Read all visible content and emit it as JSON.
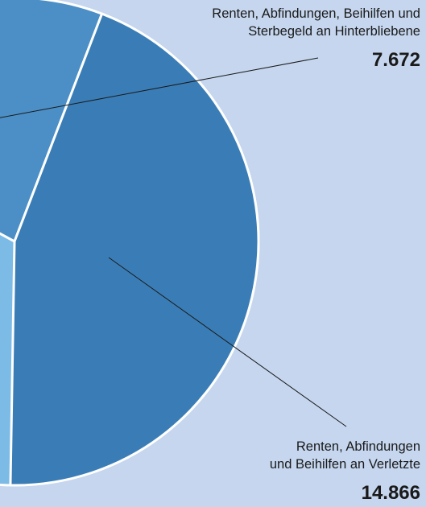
{
  "chart_data": {
    "type": "pie",
    "categories": [
      "Renten, Abfindungen, Beihilfen und\nSterbegeld an Hinterbliebene",
      "Renten, Abfindungen\nund Beihilfen an Verletzte"
    ],
    "values": [
      7672,
      14866
    ],
    "value_labels": [
      "7.672",
      "14.866"
    ],
    "colors": [
      "#4b8fc6",
      "#3a7db6"
    ]
  }
}
